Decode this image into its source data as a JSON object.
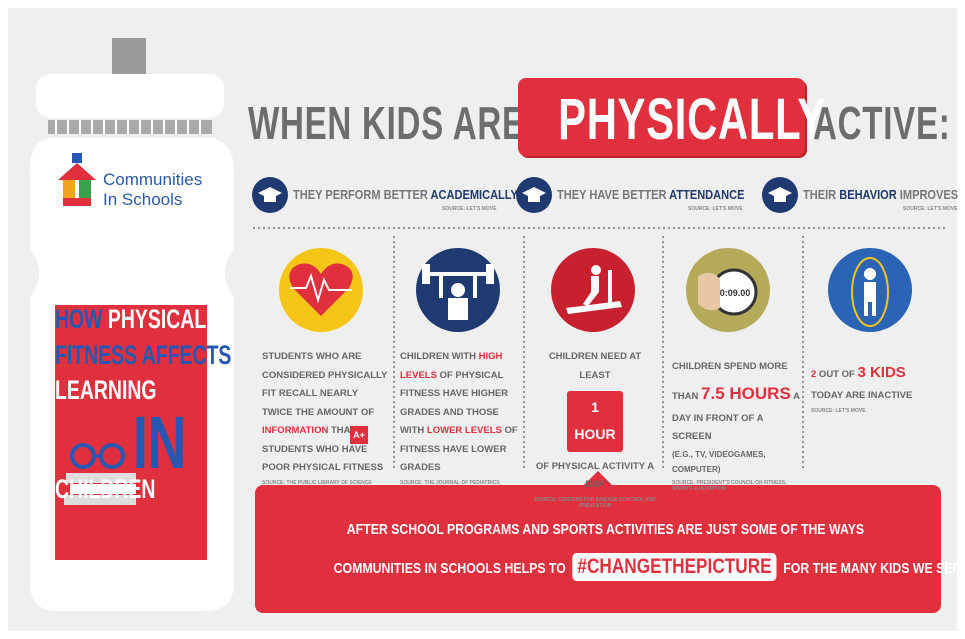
{
  "bottle": {
    "logo": [
      "Communities",
      "In Schools"
    ],
    "title": [
      [
        {
          "text": "HOW",
          "style": "blue"
        },
        {
          "text": " PHYSICAL",
          "style": "white"
        }
      ],
      [
        {
          "text": "FITNESS AFFECTS",
          "style": "blue"
        }
      ],
      [
        {
          "text": "LEARNING",
          "style": "white"
        }
      ],
      [
        {
          "text": "IN",
          "style": "blue"
        }
      ],
      [
        {
          "text": "CHILDREN",
          "style": "white"
        }
      ]
    ]
  },
  "header": {
    "before": "WHEN KIDS ARE",
    "highlight": "PHYSICALLY",
    "after": "ACTIVE:"
  },
  "benefits": [
    {
      "text": [
        {
          "text": "THEY PERFORM BETTER ",
          "style": "plain"
        },
        {
          "text": "ACADEMICALLY",
          "style": "navy"
        }
      ],
      "source": "SOURCE: LET'S MOVE"
    },
    {
      "text": [
        {
          "text": "THEY HAVE BETTER ",
          "style": "plain"
        },
        {
          "text": "ATTENDANCE",
          "style": "navy"
        }
      ],
      "source": "SOURCE: LET'S MOVE"
    },
    {
      "text": [
        {
          "text": "THEIR ",
          "style": "plain"
        },
        {
          "text": "BEHAVIOR",
          "style": "navy"
        },
        {
          "text": " IMPROVES",
          "style": "plain"
        }
      ],
      "source": "SOURCE: LET'S MOVE"
    }
  ],
  "facts": [
    {
      "text": [
        {
          "text": "STUDENTS WHO ARE CONSIDERED PHYSICALLY FIT RECALL NEARLY TWICE THE AMOUNT OF ",
          "style": "plain"
        },
        {
          "text": "INFORMATION",
          "style": "red"
        },
        {
          "text": " THAN STUDENTS WHO HAVE POOR PHYSICAL FITNESS",
          "style": "plain"
        }
      ],
      "source": "SOURCE: THE PUBLIC LIBRARY OF SCIENCE",
      "badge": "A+"
    },
    {
      "text": [
        {
          "text": "CHILDREN WITH ",
          "style": "plain"
        },
        {
          "text": "HIGH LEVELS",
          "style": "red"
        },
        {
          "text": " OF PHYSICAL FITNESS HAVE HIGHER GRADES AND THOSE WITH ",
          "style": "plain"
        },
        {
          "text": "LOWER LEVELS",
          "style": "red"
        },
        {
          "text": " OF FITNESS HAVE LOWER GRADES",
          "style": "plain"
        }
      ],
      "source": "SOURCE: THE JOURNAL OF PEDIATRICS"
    },
    {
      "text": [
        {
          "text": "CHILDREN NEED AT LEAST",
          "style": "plain"
        },
        {
          "text": "1 HOUR",
          "style": "box"
        },
        {
          "text": "OF PHYSICAL ACTIVITY A DAY",
          "style": "plain"
        }
      ],
      "source": "SOURCE: CENTERS FOR DISEASE CONTROL AND PREVENTION"
    },
    {
      "text": [
        {
          "text": "CHILDREN SPEND MORE THAN ",
          "style": "plain"
        },
        {
          "text": "7.5 HOURS",
          "style": "big"
        },
        {
          "text": " A DAY IN FRONT OF A SCREEN",
          "style": "plain"
        },
        {
          "text": "(E.G., TV, VIDEOGAMES, COMPUTER)",
          "style": "note"
        }
      ],
      "source": "SOURCE: PRESIDENT'S COUNCIL ON FITNESS, SPORTS & NUTRITION",
      "clock": "0:09.00"
    },
    {
      "text": [
        {
          "text": "2",
          "style": "red"
        },
        {
          "text": " OUT OF ",
          "style": "plain"
        },
        {
          "text": "3 KIDS",
          "style": "bigred"
        },
        {
          "text": " TODAY ARE INACTIVE",
          "style": "plain"
        }
      ],
      "source": "SOURCE: LET'S MOVE"
    }
  ],
  "banner": {
    "line1": "AFTER SCHOOL PROGRAMS AND SPORTS ACTIVITIES ARE JUST SOME OF THE WAYS",
    "line2": [
      {
        "text": "COMMUNITIES IN SCHOOLS HELPS TO ",
        "style": "plain"
      },
      {
        "text": "#CHANGETHEPICTURE",
        "style": "tag"
      },
      {
        "text": " FOR THE MANY KIDS WE SERVE",
        "style": "plain"
      }
    ]
  }
}
